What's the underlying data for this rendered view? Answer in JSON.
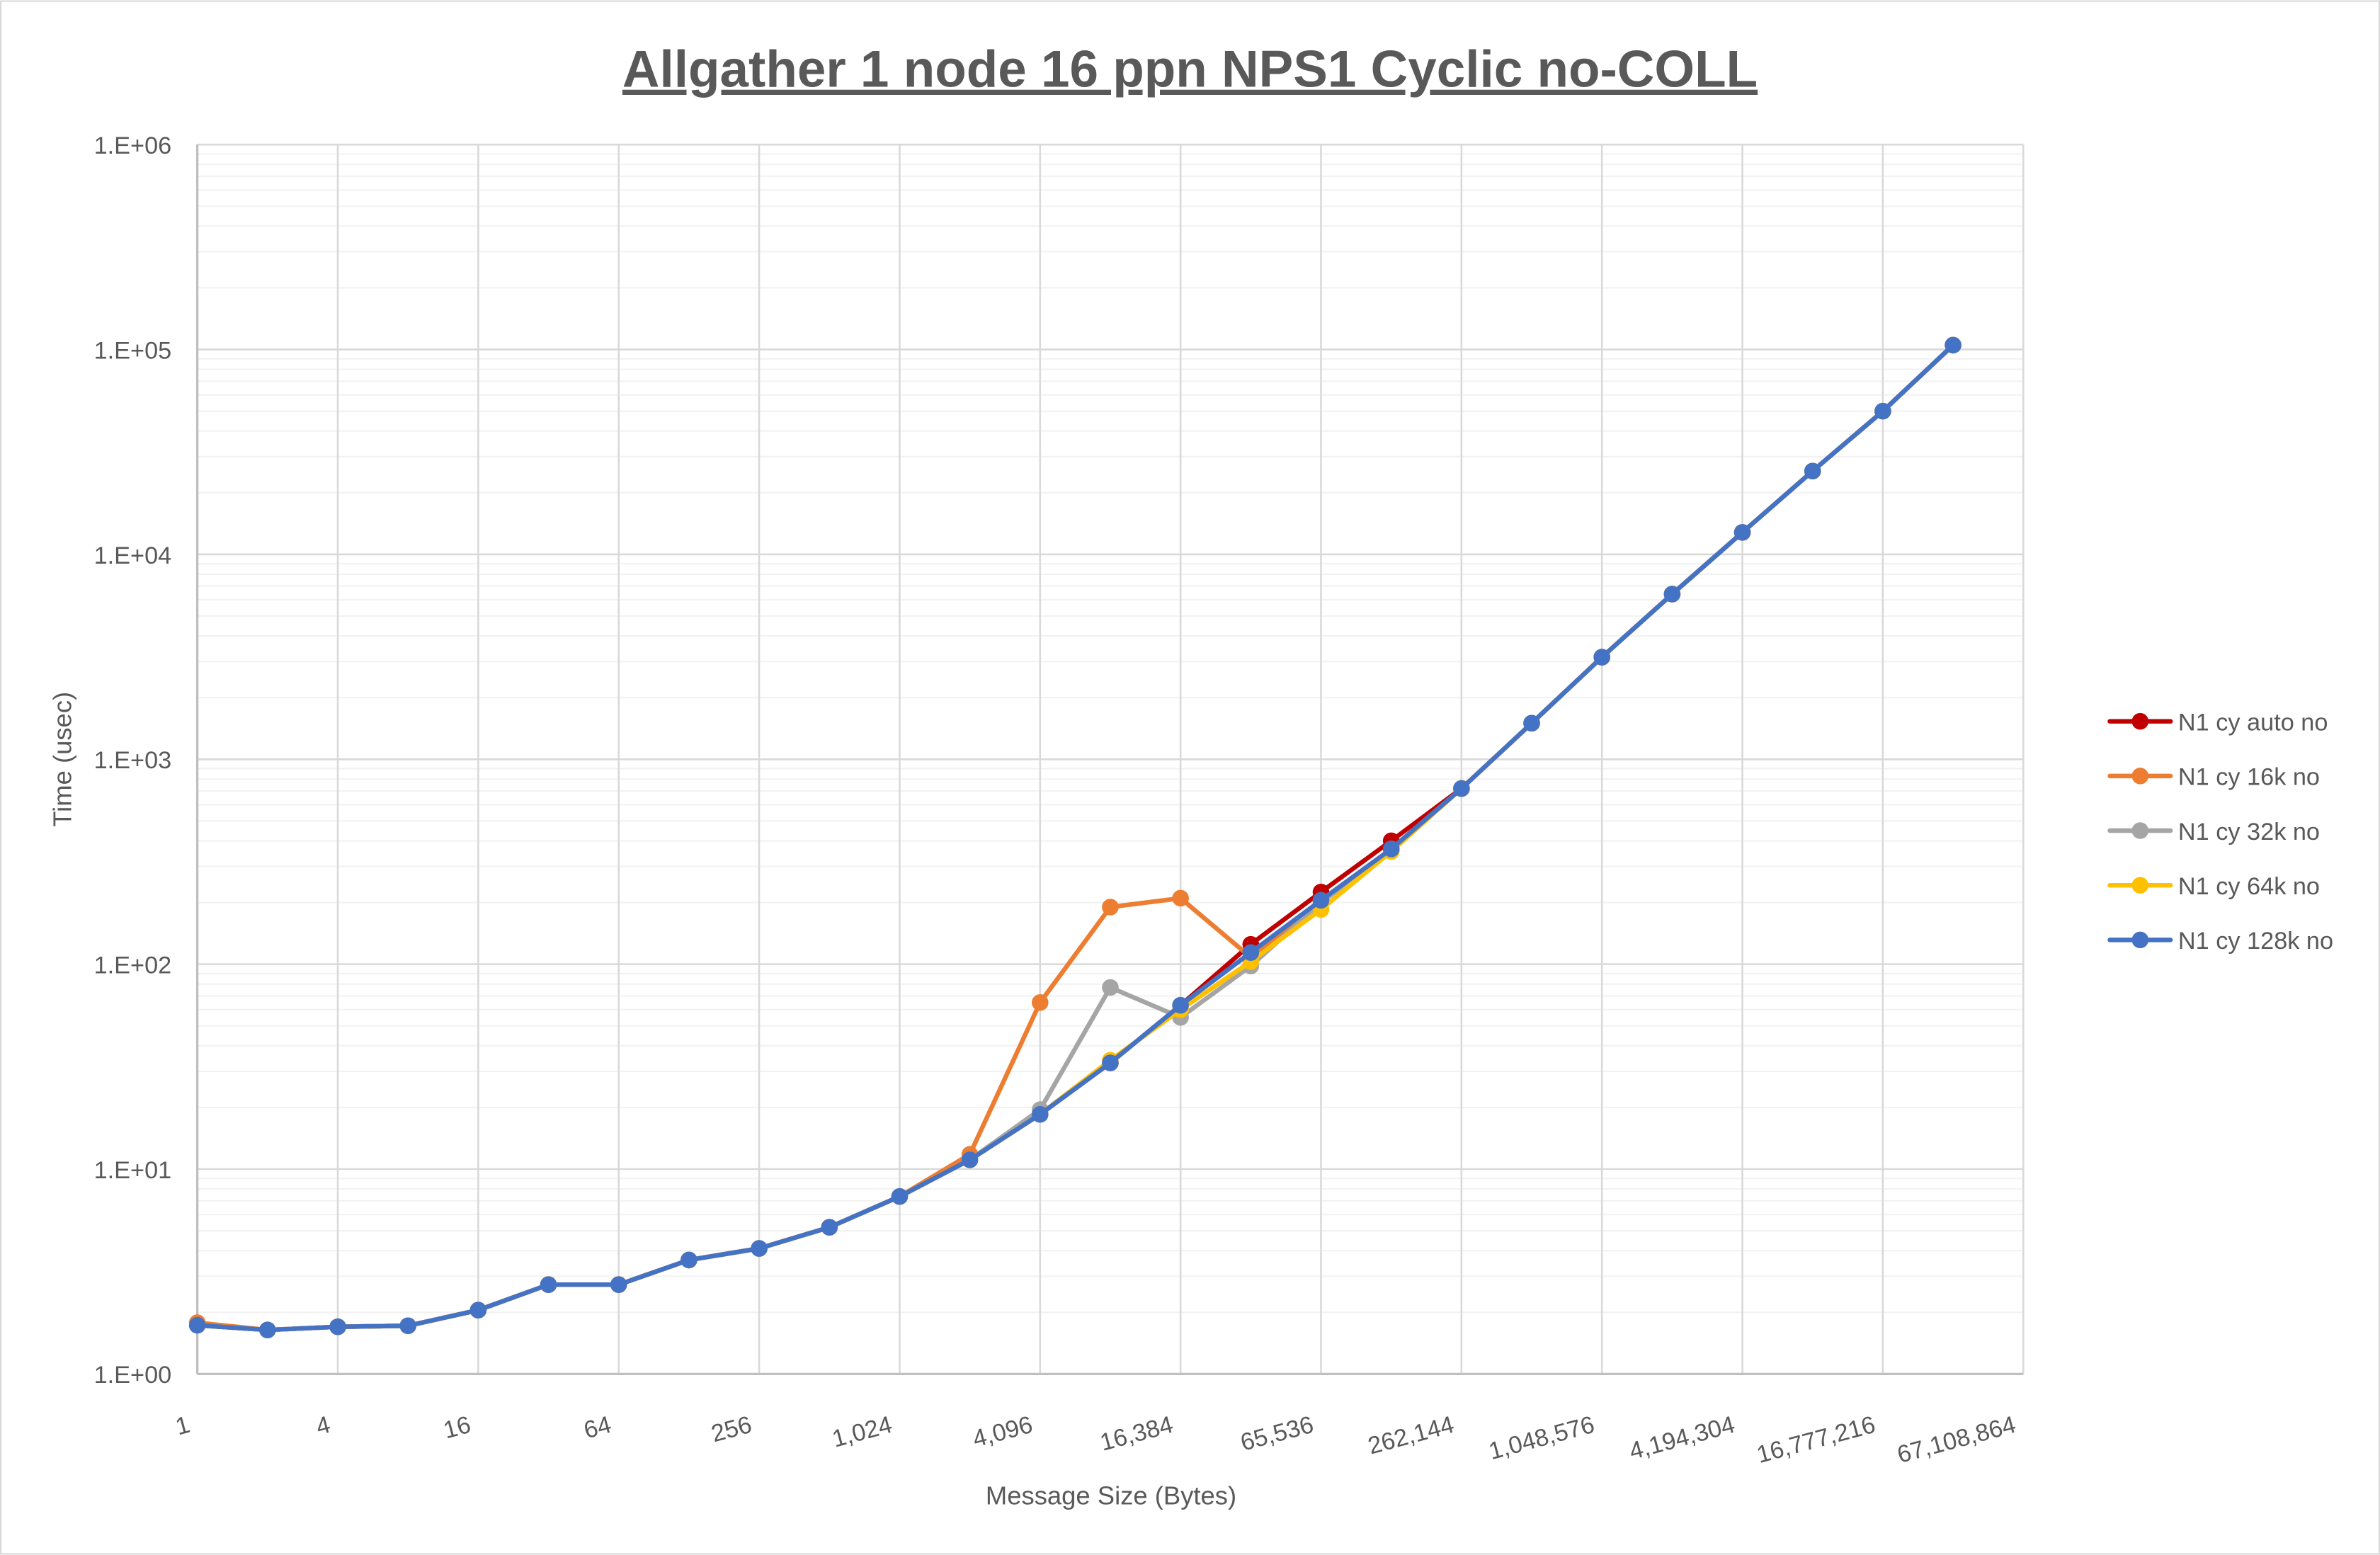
{
  "chart_data": {
    "type": "line",
    "title": "Allgather 1 node 16 ppn NPS1 Cyclic no-COLL",
    "xlabel": "Message Size (Bytes)",
    "ylabel": "Time (usec)",
    "yscale": "log",
    "ylim": [
      1,
      1000000
    ],
    "y_tick_labels": [
      "1.E+00",
      "1.E+01",
      "1.E+02",
      "1.E+03",
      "1.E+04",
      "1.E+05",
      "1.E+06"
    ],
    "x_tick_labels": [
      "1",
      "4",
      "16",
      "64",
      "256",
      "1,024",
      "4,096",
      "16,384",
      "65,536",
      "262,144",
      "1,048,576",
      "4,194,304",
      "16,777,216",
      "67,108,864"
    ],
    "categories": [
      1,
      2,
      4,
      8,
      16,
      32,
      64,
      128,
      256,
      512,
      1024,
      2048,
      4096,
      8192,
      16384,
      32768,
      65536,
      131072,
      262144,
      524288,
      1048576,
      2097152,
      4194304,
      8388608,
      16777216,
      33554432,
      67108864
    ],
    "grid": true,
    "legend_position": "right",
    "series": [
      {
        "name": "N1 cy auto no",
        "color": "#C00000",
        "values": [
          1.73,
          1.64,
          1.7,
          1.72,
          2.05,
          2.73,
          2.73,
          3.6,
          4.1,
          5.2,
          7.35,
          11.1,
          18.5,
          33,
          63,
          125,
          225,
          400,
          720,
          1500,
          3150,
          6400,
          12800,
          25500,
          50000,
          105000,
          null
        ]
      },
      {
        "name": "N1 cy 16k no",
        "color": "#ED7D31",
        "values": [
          1.78,
          1.64,
          1.7,
          1.72,
          2.05,
          2.73,
          2.73,
          3.6,
          4.1,
          5.2,
          7.35,
          11.8,
          65,
          190,
          210,
          108,
          205,
          365,
          720,
          1500,
          3150,
          6400,
          12800,
          25500,
          50000,
          105000,
          null
        ]
      },
      {
        "name": "N1 cy 32k no",
        "color": "#A5A5A5",
        "values": [
          1.73,
          1.64,
          1.7,
          1.72,
          2.05,
          2.73,
          2.73,
          3.6,
          4.1,
          5.2,
          7.35,
          11.1,
          19.5,
          77,
          55,
          98,
          200,
          360,
          720,
          1500,
          3150,
          6400,
          12800,
          25500,
          50000,
          105000,
          null
        ]
      },
      {
        "name": "N1 cy 64k no",
        "color": "#FFC000",
        "values": [
          1.73,
          1.64,
          1.7,
          1.72,
          2.05,
          2.73,
          2.73,
          3.6,
          4.1,
          5.2,
          7.35,
          11.1,
          18.5,
          34,
          60,
          103,
          185,
          355,
          720,
          1500,
          3150,
          6400,
          12800,
          25500,
          50000,
          105000,
          null
        ]
      },
      {
        "name": "N1 cy 128k no",
        "color": "#4472C4",
        "values": [
          1.73,
          1.64,
          1.7,
          1.72,
          2.05,
          2.73,
          2.73,
          3.6,
          4.1,
          5.2,
          7.35,
          11.1,
          18.5,
          33,
          63,
          114,
          205,
          365,
          720,
          1500,
          3150,
          6400,
          12800,
          25500,
          50000,
          105000,
          null
        ]
      }
    ]
  }
}
